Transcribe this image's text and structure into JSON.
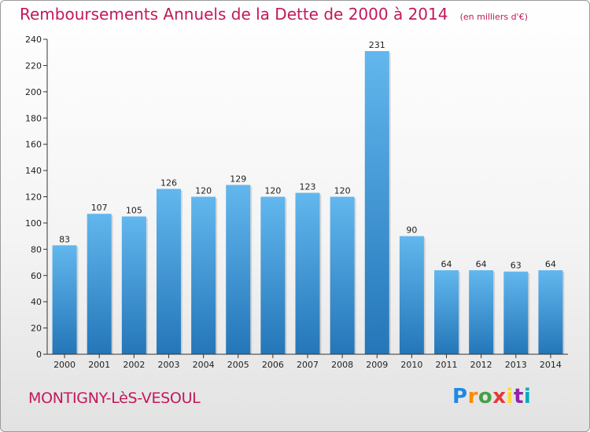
{
  "title": "Remboursements Annuels de la Dette de 2000 à 2014",
  "unit_note": "(en milliers d'€)",
  "location": "MONTIGNY-LèS-VESOUL",
  "logo_text": "Proxiti",
  "colors": {
    "title": "#c2185b",
    "bar_top": "#62b7ee",
    "bar_bottom": "#2476b8",
    "axis": "#333333",
    "gridline": "#cccccc"
  },
  "chart_data": {
    "type": "bar",
    "title": "Remboursements Annuels de la Dette de 2000 à 2014",
    "subtitle": "(en milliers d'€)",
    "xlabel": "",
    "ylabel": "",
    "categories": [
      "2000",
      "2001",
      "2002",
      "2003",
      "2004",
      "2005",
      "2006",
      "2007",
      "2008",
      "2009",
      "2010",
      "2011",
      "2012",
      "2013",
      "2014"
    ],
    "values": [
      83,
      107,
      105,
      126,
      120,
      129,
      120,
      123,
      120,
      231,
      90,
      64,
      64,
      63,
      64
    ],
    "data_labels": [
      "83",
      "107",
      "105",
      "126",
      "120",
      "129",
      "120",
      "123",
      "120",
      "231",
      "90",
      "64",
      "64",
      "63",
      "64"
    ],
    "yticks": [
      0,
      20,
      40,
      60,
      80,
      100,
      120,
      140,
      160,
      180,
      200,
      220,
      240
    ],
    "ylim": [
      0,
      240
    ],
    "grid": false,
    "legend": "none"
  }
}
